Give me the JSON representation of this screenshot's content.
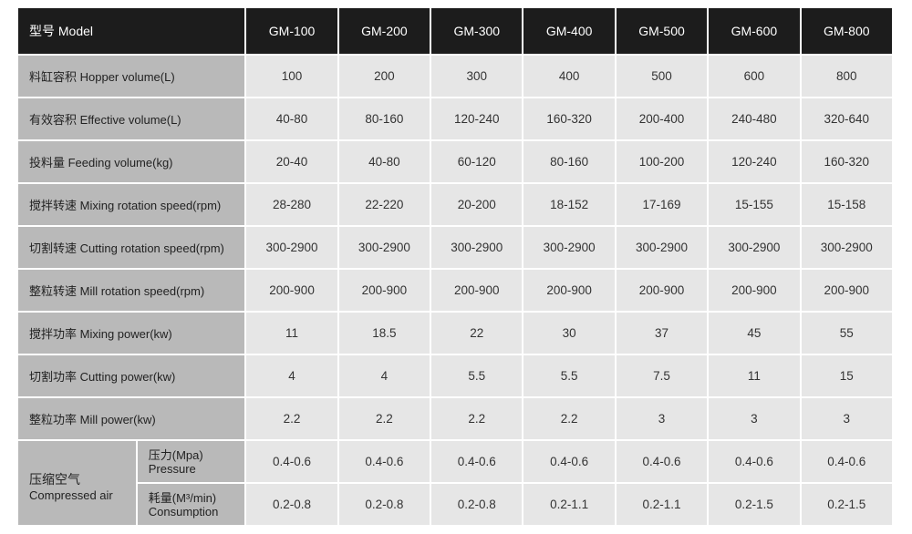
{
  "header": {
    "label": "型号 Model",
    "models": [
      "GM-100",
      "GM-200",
      "GM-300",
      "GM-400",
      "GM-500",
      "GM-600",
      "GM-800"
    ]
  },
  "rows": [
    {
      "label": "料缸容积 Hopper volume(L)",
      "values": [
        "100",
        "200",
        "300",
        "400",
        "500",
        "600",
        "800"
      ]
    },
    {
      "label": "有效容积 Effective volume(L)",
      "values": [
        "40-80",
        "80-160",
        "120-240",
        "160-320",
        "200-400",
        "240-480",
        "320-640"
      ]
    },
    {
      "label": "投料量 Feeding volume(kg)",
      "values": [
        "20-40",
        "40-80",
        "60-120",
        "80-160",
        "100-200",
        "120-240",
        "160-320"
      ]
    },
    {
      "label": "搅拌转速 Mixing rotation speed(rpm)",
      "values": [
        "28-280",
        "22-220",
        "20-200",
        "18-152",
        "17-169",
        "15-155",
        "15-158"
      ]
    },
    {
      "label": "切割转速 Cutting rotation speed(rpm)",
      "values": [
        "300-2900",
        "300-2900",
        "300-2900",
        "300-2900",
        "300-2900",
        "300-2900",
        "300-2900"
      ]
    },
    {
      "label": "整粒转速 Mill rotation speed(rpm)",
      "values": [
        "200-900",
        "200-900",
        "200-900",
        "200-900",
        "200-900",
        "200-900",
        "200-900"
      ]
    },
    {
      "label": "搅拌功率 Mixing power(kw)",
      "values": [
        "11",
        "18.5",
        "22",
        "30",
        "37",
        "45",
        "55"
      ]
    },
    {
      "label": "切割功率 Cutting power(kw)",
      "values": [
        "4",
        "4",
        "5.5",
        "5.5",
        "7.5",
        "11",
        "15"
      ]
    },
    {
      "label": "整粒功率 Mill power(kw)",
      "values": [
        "2.2",
        "2.2",
        "2.2",
        "2.2",
        "3",
        "3",
        "3"
      ]
    }
  ],
  "compressed_air": {
    "label_zh": "压缩空气",
    "label_en": "Compressed air",
    "pressure": {
      "label_zh": "压力(Mpa)",
      "label_en": "Pressure",
      "values": [
        "0.4-0.6",
        "0.4-0.6",
        "0.4-0.6",
        "0.4-0.6",
        "0.4-0.6",
        "0.4-0.6",
        "0.4-0.6"
      ]
    },
    "consumption": {
      "label_zh": "耗量(M³/min)",
      "label_en": "Consumption",
      "values": [
        "0.2-0.8",
        "0.2-0.8",
        "0.2-0.8",
        "0.2-1.1",
        "0.2-1.1",
        "0.2-1.5",
        "0.2-1.5"
      ]
    }
  }
}
